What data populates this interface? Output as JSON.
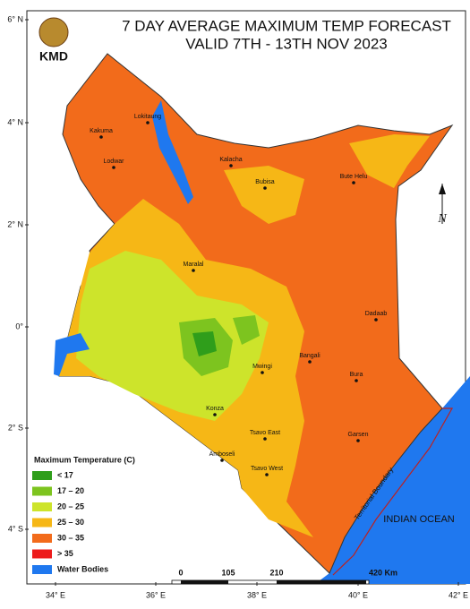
{
  "map": {
    "title": [
      "7 DAY AVERAGE MAXIMUM TEMP FORECAST",
      "VALID 7TH - 13TH NOV 2023"
    ],
    "logo_text": "KMD",
    "lat_labels": [
      "6° N",
      "4° N",
      "2° N",
      "0°",
      "2° S",
      "4° S"
    ],
    "lon_labels": [
      "34° E",
      "36° E",
      "38° E",
      "40° E",
      "42° E"
    ],
    "legend": {
      "title": "Maximum Temperature (C)",
      "items": [
        {
          "label": "< 17",
          "color": "#2f9e1b"
        },
        {
          "label": "17 – 20",
          "color": "#7dc41f"
        },
        {
          "label": "20 – 25",
          "color": "#cde42b"
        },
        {
          "label": "25 – 30",
          "color": "#f6b716"
        },
        {
          "label": "30 – 35",
          "color": "#f26b1b"
        },
        {
          "label": "> 35",
          "color": "#ed1c1c"
        },
        {
          "label": "Water Bodies",
          "color": "#1f78ef"
        }
      ]
    },
    "scale_bar": [
      "0",
      "105",
      "210",
      "420 Km"
    ],
    "places": [
      "Lokitaung",
      "Kakuma",
      "Lodwar",
      "Kalacha",
      "Bubisa",
      "Bute Helu",
      "Maralal",
      "Dadaab",
      "Bangali",
      "Bura",
      "Mwingi",
      "Konza",
      "Tsavo East",
      "Garsen",
      "Amboseli",
      "Tsavo West"
    ],
    "sea_label": "INDIAN OCEAN",
    "boundary_label": "Territorial Boundary",
    "north_label": "N"
  }
}
